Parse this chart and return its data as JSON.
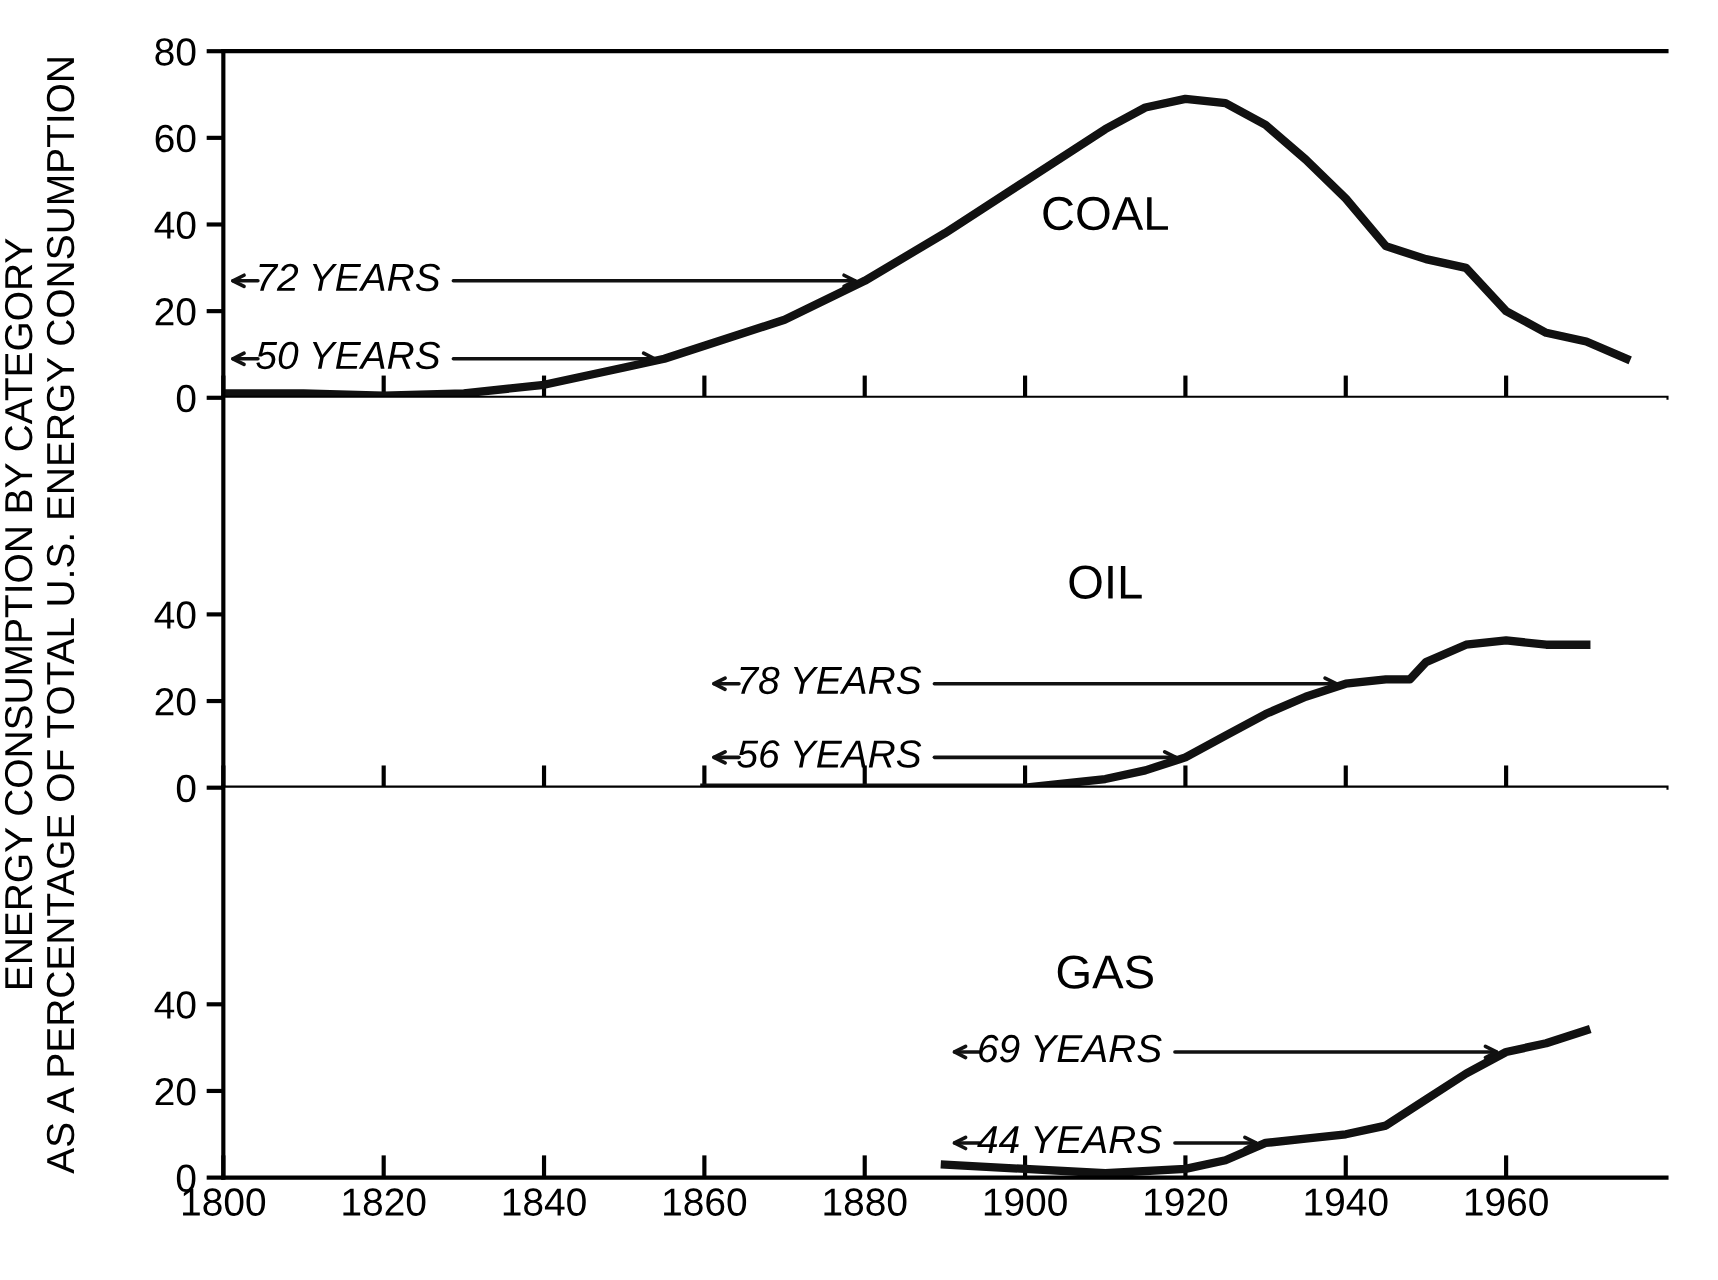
{
  "chart_data": [
    {
      "type": "line",
      "ylabel": "ENERGY CONSUMPTION BY CATEGORY\nAS A PERCENTAGE OF TOTAL U.S. ENERGY CONSUMPTION",
      "x": [
        1800,
        1810,
        1820,
        1830,
        1840,
        1850,
        1855,
        1860,
        1870,
        1880,
        1890,
        1900,
        1910,
        1915,
        1920,
        1925,
        1930,
        1935,
        1940,
        1945,
        1950,
        1955,
        1960,
        1965,
        1970,
        1975
      ],
      "series": [
        {
          "color": "#111111",
          "values": [
            1,
            1,
            0.5,
            1,
            3,
            7,
            9,
            12,
            18,
            27,
            38,
            50,
            62,
            67,
            69,
            68,
            63,
            55,
            46,
            35,
            32,
            30,
            20,
            15,
            13,
            9
          ]
        }
      ],
      "annotations": [
        "COAL",
        {
          "text": "72 YEARS",
          "x": 1880,
          "y": 27
        },
        {
          "text": "50 YEARS",
          "x": 1855,
          "y": 9
        }
      ],
      "xlim": [
        1800,
        1980
      ],
      "xticks": [
        1800,
        1820,
        1840,
        1860,
        1880,
        1900,
        1920,
        1940,
        1960
      ],
      "ylim": [
        0,
        80
      ],
      "yticks": [
        0,
        20,
        40,
        60,
        80
      ],
      "tick_labels": "y",
      "grid": false,
      "legend": false
    },
    {
      "type": "line",
      "x": [
        1860,
        1880,
        1900,
        1905,
        1910,
        1915,
        1920,
        1925,
        1930,
        1935,
        1940,
        1945,
        1948,
        1950,
        1955,
        1960,
        1965,
        1970
      ],
      "series": [
        {
          "color": "#111111",
          "values": [
            0,
            0,
            0,
            1,
            2,
            4,
            7,
            12,
            17,
            21,
            24,
            25,
            25,
            29,
            33,
            34,
            33,
            33
          ]
        }
      ],
      "annotations": [
        "OIL",
        {
          "text": "78 YEARS",
          "x": 1940,
          "y": 24
        },
        {
          "text": "56 YEARS",
          "x": 1920,
          "y": 7
        }
      ],
      "xlim": [
        1800,
        1980
      ],
      "xticks": [
        1800,
        1820,
        1840,
        1860,
        1880,
        1900,
        1920,
        1940,
        1960
      ],
      "ylim": [
        0,
        90
      ],
      "yticks": [
        0,
        20,
        40
      ],
      "tick_labels": "y",
      "grid": false,
      "legend": false
    },
    {
      "type": "line",
      "x": [
        1890,
        1900,
        1910,
        1920,
        1925,
        1930,
        1935,
        1940,
        1945,
        1950,
        1955,
        1960,
        1965,
        1970
      ],
      "series": [
        {
          "color": "#111111",
          "values": [
            3,
            2,
            1,
            2,
            4,
            8,
            9,
            10,
            12,
            18,
            24,
            29,
            31,
            34
          ]
        }
      ],
      "annotations": [
        "GAS",
        {
          "text": "69 YEARS",
          "x": 1960,
          "y": 29
        },
        {
          "text": "44 YEARS",
          "x": 1930,
          "y": 8
        }
      ],
      "xlim": [
        1800,
        1980
      ],
      "xticks": [
        1800,
        1820,
        1840,
        1860,
        1880,
        1900,
        1920,
        1940,
        1960
      ],
      "ylim": [
        0,
        90
      ],
      "yticks": [
        0,
        20,
        40
      ],
      "grid": false,
      "legend": false
    }
  ]
}
